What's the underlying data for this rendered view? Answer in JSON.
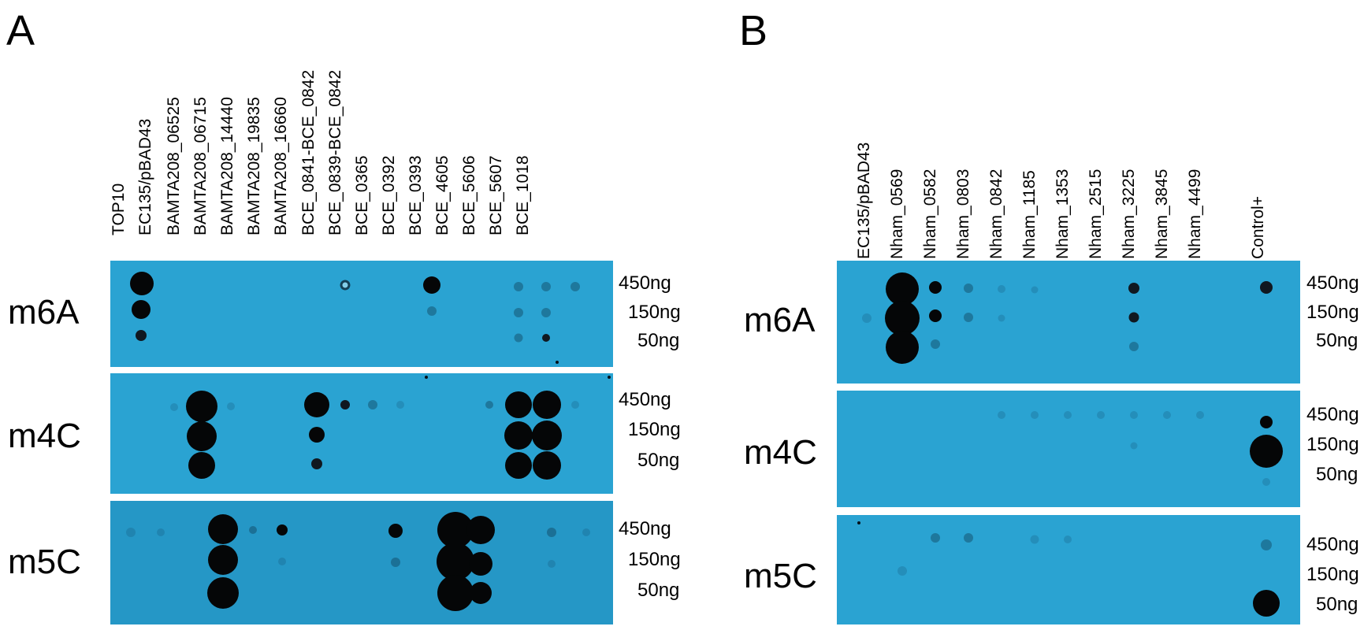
{
  "panel_a": {
    "letter": "A",
    "lanes": [
      "TOP10",
      "EC135/pBAD43",
      "BAMTA208_06525",
      "BAMTA208_06715",
      "BAMTA208_14440",
      "BAMTA208_19835",
      "BAMTA208_16660",
      "BCE_0841-BCE_0842",
      "BCE_0839-BCE_0842",
      "BCE_0365",
      "BCE_0392",
      "BCE_0393",
      "BCE_4605",
      "BCE_5606",
      "BCE_5607",
      "BCE_1018"
    ],
    "rows": [
      {
        "label": "m6A",
        "amounts": [
          "450ng",
          "150ng",
          "50ng"
        ]
      },
      {
        "label": "m4C",
        "amounts": [
          "450ng",
          "150ng",
          "50ng"
        ]
      },
      {
        "label": "m5C",
        "amounts": [
          "450ng",
          "150ng",
          "50ng"
        ]
      }
    ]
  },
  "panel_b": {
    "letter": "B",
    "lanes": [
      "EC135/pBAD43",
      "Nham_0569",
      "Nham_0582",
      "Nham_0803",
      "Nham_0842",
      "Nham_1185",
      "Nham_1353",
      "Nham_2515",
      "Nham_3225",
      "Nham_3845",
      "Nham_4499",
      "Control+"
    ],
    "rows": [
      {
        "label": "m6A",
        "amounts": [
          "450ng",
          "150ng",
          "50ng"
        ]
      },
      {
        "label": "m4C",
        "amounts": [
          "450ng",
          "150ng",
          "50ng"
        ]
      },
      {
        "label": "m5C",
        "amounts": [
          "450ng",
          "150ng",
          "50ng"
        ]
      }
    ]
  }
}
